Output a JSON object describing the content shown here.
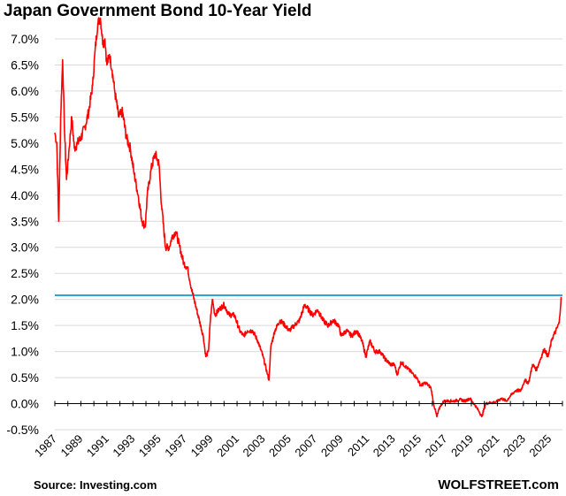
{
  "chart_data": {
    "type": "line",
    "title": "Japan Government Bond 10-Year Yield",
    "source": "Source: Investing.com",
    "brand": "WOLFSTREET.com",
    "xlabel": "",
    "ylabel": "",
    "ylim": [
      -0.5,
      7.25
    ],
    "xlim": [
      1987.0,
      2026.0
    ],
    "y_ticks": [
      -0.5,
      0.0,
      0.5,
      1.0,
      1.5,
      2.0,
      2.5,
      3.0,
      3.5,
      4.0,
      4.5,
      5.0,
      5.5,
      6.0,
      6.5,
      7.0
    ],
    "y_tick_labels": [
      "-0.5%",
      "0.0%",
      "0.5%",
      "1.0%",
      "1.5%",
      "2.0%",
      "2.5%",
      "3.0%",
      "3.5%",
      "4.0%",
      "4.5%",
      "5.0%",
      "5.5%",
      "6.0%",
      "6.5%",
      "7.0%"
    ],
    "x_tick_labels": [
      "1987",
      "1989",
      "1991",
      "1993",
      "1995",
      "1997",
      "1999",
      "2001",
      "2003",
      "2005",
      "2007",
      "2009",
      "2011",
      "2013",
      "2015",
      "2017",
      "2019",
      "2021",
      "2023",
      "2025"
    ],
    "grid": "horizontal",
    "reference_line": {
      "value": 2.08,
      "color": "#2aa6d8"
    },
    "series": [
      {
        "color": "#ff0000",
        "x": [
          1987.0,
          1987.15,
          1987.3,
          1987.45,
          1987.6,
          1987.75,
          1987.9,
          1988.1,
          1988.3,
          1988.5,
          1988.75,
          1989.0,
          1989.3,
          1989.6,
          1989.9,
          1990.1,
          1990.3,
          1990.5,
          1990.7,
          1990.85,
          1991.0,
          1991.2,
          1991.4,
          1991.6,
          1991.9,
          1992.2,
          1992.5,
          1992.8,
          1993.1,
          1993.4,
          1993.7,
          1993.95,
          1994.1,
          1994.4,
          1994.7,
          1995.0,
          1995.2,
          1995.5,
          1995.8,
          1996.0,
          1996.3,
          1996.6,
          1996.9,
          1997.2,
          1997.5,
          1997.8,
          1998.1,
          1998.4,
          1998.6,
          1998.8,
          1998.95,
          1999.1,
          1999.3,
          1999.6,
          2000.0,
          2000.4,
          2000.8,
          2001.2,
          2001.5,
          2001.8,
          2002.2,
          2002.6,
          2003.0,
          2003.3,
          2003.45,
          2003.6,
          2003.9,
          2004.3,
          2004.7,
          2005.0,
          2005.4,
          2005.8,
          2006.2,
          2006.5,
          2006.8,
          2007.2,
          2007.6,
          2008.0,
          2008.4,
          2008.8,
          2009.0,
          2009.4,
          2009.8,
          2010.2,
          2010.6,
          2010.9,
          2011.2,
          2011.6,
          2012.0,
          2012.4,
          2012.8,
          2013.1,
          2013.3,
          2013.6,
          2014.0,
          2014.4,
          2014.8,
          2015.1,
          2015.5,
          2015.9,
          2016.1,
          2016.35,
          2016.6,
          2016.9,
          2017.3,
          2017.7,
          2018.1,
          2018.5,
          2018.9,
          2019.2,
          2019.6,
          2019.8,
          2020.1,
          2020.5,
          2020.9,
          2021.3,
          2021.7,
          2022.0,
          2022.4,
          2022.8,
          2023.1,
          2023.4,
          2023.7,
          2024.0,
          2024.3,
          2024.6,
          2024.9,
          2025.2,
          2025.5,
          2025.75,
          2025.9
        ],
        "y": [
          5.2,
          5.0,
          3.5,
          5.5,
          6.6,
          5.2,
          4.3,
          4.9,
          5.5,
          4.9,
          5.0,
          5.1,
          5.3,
          5.6,
          6.1,
          6.8,
          7.3,
          7.4,
          6.9,
          7.0,
          6.5,
          6.7,
          6.4,
          6.0,
          5.5,
          5.6,
          5.1,
          4.9,
          4.4,
          4.0,
          3.5,
          3.4,
          4.0,
          4.5,
          4.8,
          4.6,
          3.8,
          3.0,
          3.0,
          3.2,
          3.3,
          3.0,
          2.7,
          2.6,
          2.2,
          1.9,
          1.6,
          1.3,
          0.9,
          1.0,
          1.6,
          2.0,
          1.7,
          1.8,
          1.9,
          1.7,
          1.7,
          1.4,
          1.3,
          1.4,
          1.4,
          1.2,
          0.9,
          0.6,
          0.45,
          1.1,
          1.4,
          1.6,
          1.5,
          1.4,
          1.5,
          1.6,
          1.9,
          1.8,
          1.7,
          1.8,
          1.6,
          1.5,
          1.6,
          1.5,
          1.3,
          1.4,
          1.3,
          1.4,
          1.2,
          0.9,
          1.2,
          1.0,
          1.0,
          0.85,
          0.75,
          0.75,
          0.55,
          0.8,
          0.7,
          0.6,
          0.5,
          0.35,
          0.4,
          0.3,
          0.0,
          -0.25,
          -0.05,
          0.05,
          0.05,
          0.05,
          0.08,
          0.05,
          0.1,
          0.0,
          -0.15,
          -0.25,
          0.0,
          0.02,
          0.03,
          0.1,
          0.05,
          0.15,
          0.25,
          0.25,
          0.45,
          0.4,
          0.75,
          0.65,
          0.85,
          1.05,
          0.9,
          1.25,
          1.4,
          1.55,
          2.05
        ]
      }
    ]
  }
}
